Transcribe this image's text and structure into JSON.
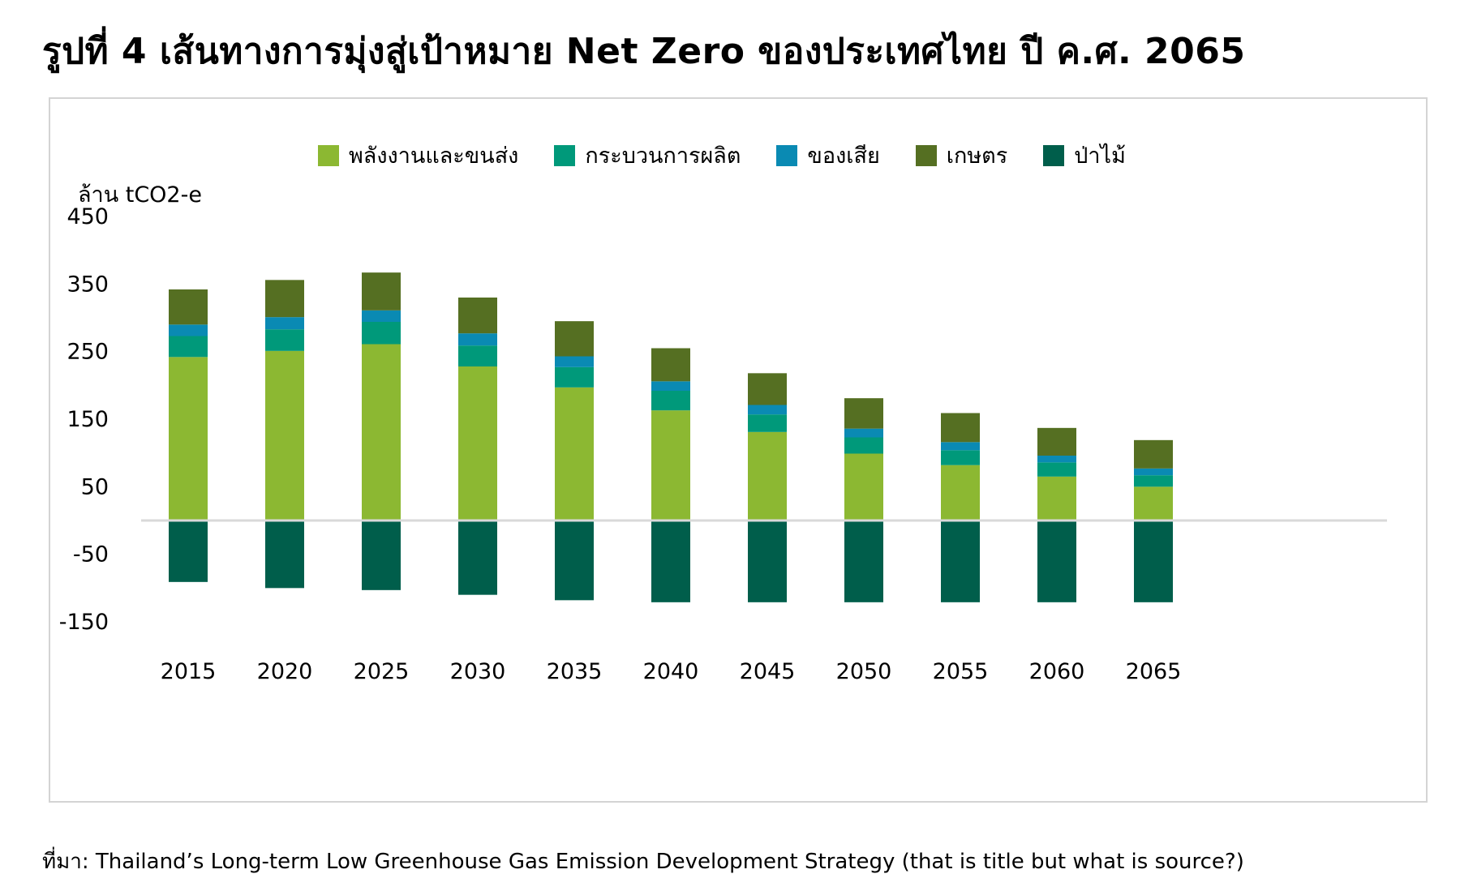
{
  "title": "รูปที่ 4 เส้นทางการมุ่งสู่เป้าหมาย Net Zero ของประเทศไทย ปี ค.ศ. 2065",
  "source": "ที่มา: Thailand’s Long-term Low Greenhouse Gas Emission Development Strategy (that is title but what is source?)",
  "chart_data": {
    "type": "bar",
    "stacked": true,
    "ylabel": "ล้าน tCO2-e",
    "xlabel": "",
    "ylim": [
      -150,
      450
    ],
    "yticks": [
      450,
      350,
      250,
      150,
      50,
      -50,
      -150
    ],
    "categories": [
      "2015",
      "2020",
      "2025",
      "2030",
      "2035",
      "2040",
      "2045",
      "2050",
      "2055",
      "2060",
      "2065"
    ],
    "legend_position": "top",
    "grid": false,
    "series": [
      {
        "name": "พลังงานและขนส่ง",
        "color": "#8cb832",
        "values": [
          242,
          251,
          261,
          228,
          197,
          163,
          131,
          99,
          82,
          65,
          50
        ]
      },
      {
        "name": "กระบวนการผลิต",
        "color": "#00997a",
        "values": [
          31,
          32,
          33,
          31,
          30,
          29,
          26,
          24,
          22,
          21,
          17
        ]
      },
      {
        "name": "ของเสีย",
        "color": "#0a8ab3",
        "values": [
          17,
          18,
          17,
          18,
          16,
          14,
          14,
          13,
          12,
          10,
          10
        ]
      },
      {
        "name": "เกษตร",
        "color": "#556f22",
        "values": [
          52,
          55,
          56,
          53,
          52,
          49,
          47,
          45,
          43,
          41,
          42
        ]
      },
      {
        "name": "ป่าไม้",
        "color": "#005e4b",
        "values": [
          -91,
          -100,
          -103,
          -110,
          -118,
          -121,
          -121,
          -121,
          -121,
          -121,
          -121
        ]
      }
    ]
  }
}
